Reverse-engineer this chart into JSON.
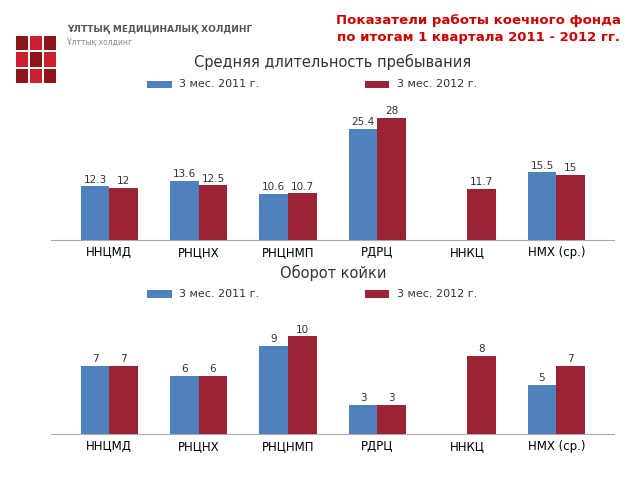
{
  "title": "Показатели работы коечного фонда\nпо итогам 1 квартала 2011 - 2012 гг.",
  "title_color": "#cc0000",
  "background_color": "#ffffff",
  "categories": [
    "ННЦМД",
    "РНЦНХ",
    "РНЦНМП",
    "РДРЦ",
    "ННКЦ",
    "НМХ (ср.)"
  ],
  "chart1_title": "Средняя длительность пребывания",
  "chart2_title": "Оборот койки",
  "legend_2011": "3 мес. 2011 г.",
  "legend_2012": "3 мес. 2012 г.",
  "color_2011": "#4f81bd",
  "color_2012": "#9b2335",
  "chart1_vals_2011": [
    12.3,
    13.6,
    10.6,
    25.4,
    null,
    15.5
  ],
  "chart1_vals_2012": [
    12.0,
    12.5,
    10.7,
    28.0,
    11.7,
    15.0
  ],
  "chart2_vals_2011": [
    7,
    6,
    9,
    3,
    null,
    5
  ],
  "chart2_vals_2012": [
    7,
    6,
    10,
    3,
    8,
    7
  ],
  "bar_width": 0.32,
  "fig_width": 6.4,
  "fig_height": 4.8
}
